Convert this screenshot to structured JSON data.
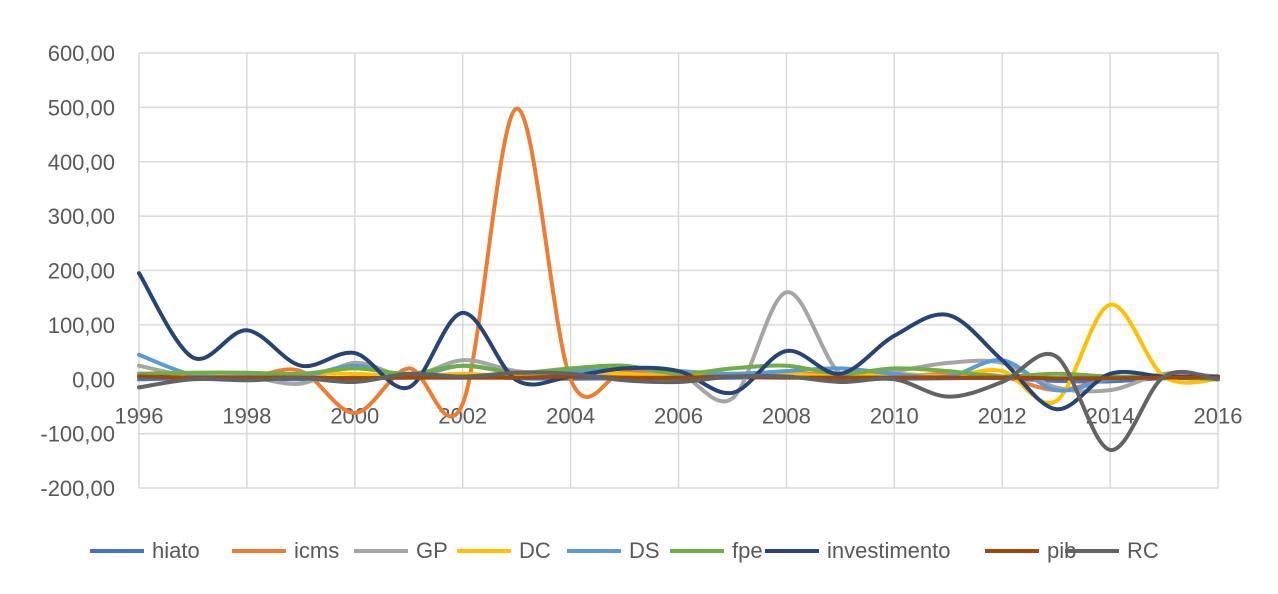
{
  "chart_data": {
    "type": "line",
    "x": [
      1996,
      1997,
      1998,
      1999,
      2000,
      2001,
      2002,
      2003,
      2004,
      2005,
      2006,
      2007,
      2008,
      2009,
      2010,
      2011,
      2012,
      2013,
      2014,
      2015,
      2016
    ],
    "ylim": [
      -200,
      600
    ],
    "yticks": [
      600,
      500,
      400,
      300,
      200,
      100,
      0,
      -100,
      -200
    ],
    "ytick_labels": [
      "600,00",
      "500,00",
      "400,00",
      "300,00",
      "200,00",
      "100,00",
      "0,00",
      "-100,00",
      "-200,00"
    ],
    "xticks": [
      1996,
      1998,
      2000,
      2002,
      2004,
      2006,
      2008,
      2010,
      2012,
      2014,
      2016
    ],
    "xtick_labels": [
      "1996",
      "1998",
      "2000",
      "2002",
      "2004",
      "2006",
      "2008",
      "2010",
      "2012",
      "2014",
      "2016"
    ],
    "grid": "vertical and horizontal",
    "legend_position": "bottom",
    "series": [
      {
        "name": "hiato",
        "color": "#4472c4",
        "values": [
          0,
          2,
          1,
          0,
          3,
          4,
          6,
          2,
          1,
          2,
          2,
          3,
          4,
          2,
          1,
          2,
          2,
          -3,
          -4,
          2,
          1
        ]
      },
      {
        "name": "icms",
        "color": "#ed7d31",
        "values": [
          5,
          5,
          3,
          15,
          -62,
          20,
          -45,
          498,
          0,
          15,
          10,
          5,
          10,
          8,
          5,
          10,
          5,
          -20,
          0,
          5,
          0
        ]
      },
      {
        "name": "GP",
        "color": "#a5a5a5",
        "values": [
          25,
          5,
          5,
          -8,
          30,
          5,
          35,
          15,
          10,
          5,
          10,
          -35,
          160,
          10,
          15,
          30,
          30,
          -15,
          -20,
          10,
          5
        ]
      },
      {
        "name": "DC",
        "color": "#ffc000",
        "values": [
          10,
          8,
          5,
          10,
          10,
          5,
          10,
          5,
          15,
          10,
          5,
          10,
          10,
          5,
          10,
          5,
          15,
          -40,
          137,
          5,
          0
        ]
      },
      {
        "name": "DS",
        "color": "#5b9bd5",
        "values": [
          45,
          8,
          5,
          5,
          25,
          5,
          25,
          12,
          15,
          20,
          15,
          10,
          15,
          20,
          10,
          5,
          35,
          -20,
          0,
          5,
          0
        ]
      },
      {
        "name": "fpe",
        "color": "#70ad47",
        "values": [
          10,
          12,
          12,
          10,
          20,
          10,
          25,
          12,
          20,
          25,
          10,
          20,
          25,
          10,
          20,
          15,
          5,
          10,
          5,
          5,
          0
        ]
      },
      {
        "name": "investimento",
        "color": "#264478",
        "values": [
          195,
          40,
          90,
          25,
          48,
          -15,
          122,
          -2,
          5,
          20,
          15,
          -25,
          52,
          10,
          80,
          118,
          35,
          -55,
          10,
          5,
          5
        ]
      },
      {
        "name": "pib",
        "color": "#9e480e",
        "values": [
          5,
          3,
          3,
          3,
          2,
          3,
          3,
          3,
          5,
          3,
          3,
          5,
          3,
          3,
          3,
          3,
          3,
          2,
          2,
          3,
          3
        ]
      },
      {
        "name": "RC",
        "color": "#636363",
        "values": [
          -15,
          0,
          -2,
          2,
          -5,
          10,
          5,
          12,
          10,
          -2,
          -5,
          5,
          5,
          -5,
          0,
          -32,
          -5,
          42,
          -130,
          5,
          0
        ]
      }
    ]
  }
}
